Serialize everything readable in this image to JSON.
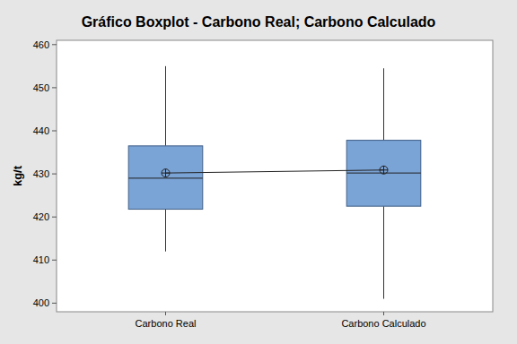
{
  "chart_data": {
    "type": "box",
    "title": "Gráfico Boxplot - Carbono Real; Carbono Calculado",
    "y_label": "kg/t",
    "categories": [
      "Carbono Real",
      "Carbono Calculado"
    ],
    "min": [
      412,
      401
    ],
    "q1": [
      421.8,
      422.5
    ],
    "median": [
      429,
      430.2
    ],
    "q3": [
      436.5,
      437.8
    ],
    "max": [
      455,
      454.5
    ],
    "mean": [
      430.2,
      430.9
    ],
    "color": "#7aa3d6",
    "marker": "circle-cross",
    "ylim": [
      398,
      461
    ],
    "yticks": [
      400,
      410,
      420,
      430,
      440,
      450,
      460
    ],
    "grid": false
  }
}
